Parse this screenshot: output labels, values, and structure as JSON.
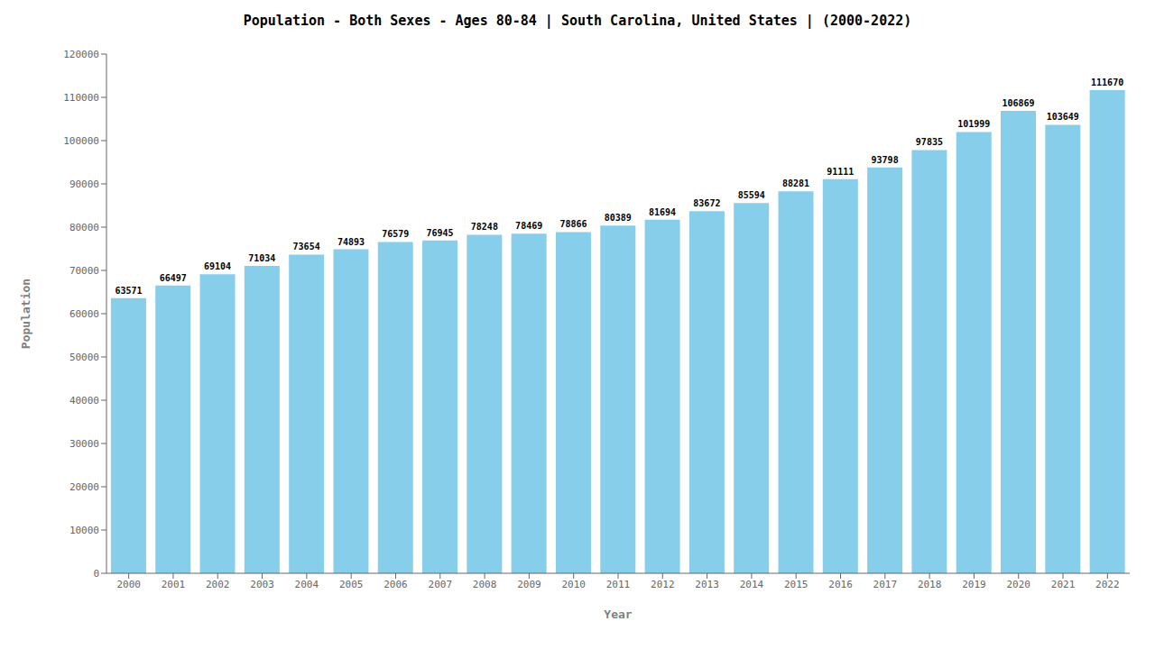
{
  "chart_data": {
    "type": "bar",
    "title": "Population - Both Sexes - Ages 80-84 | South Carolina, United States |  (2000-2022)",
    "xlabel": "Year",
    "ylabel": "Population",
    "categories": [
      "2000",
      "2001",
      "2002",
      "2003",
      "2004",
      "2005",
      "2006",
      "2007",
      "2008",
      "2009",
      "2010",
      "2011",
      "2012",
      "2013",
      "2014",
      "2015",
      "2016",
      "2017",
      "2018",
      "2019",
      "2020",
      "2021",
      "2022"
    ],
    "values": [
      63571,
      66497,
      69104,
      71034,
      73654,
      74893,
      76579,
      76945,
      78248,
      78469,
      78866,
      80389,
      81694,
      83672,
      85594,
      88281,
      91111,
      93798,
      97835,
      101999,
      106869,
      103649,
      111670
    ],
    "color": "#87CEEB",
    "ylim": [
      0,
      120000
    ],
    "yticks": [
      0,
      10000,
      20000,
      30000,
      40000,
      50000,
      60000,
      70000,
      80000,
      90000,
      100000,
      110000,
      120000
    ],
    "grid": false,
    "data_labels": true
  }
}
